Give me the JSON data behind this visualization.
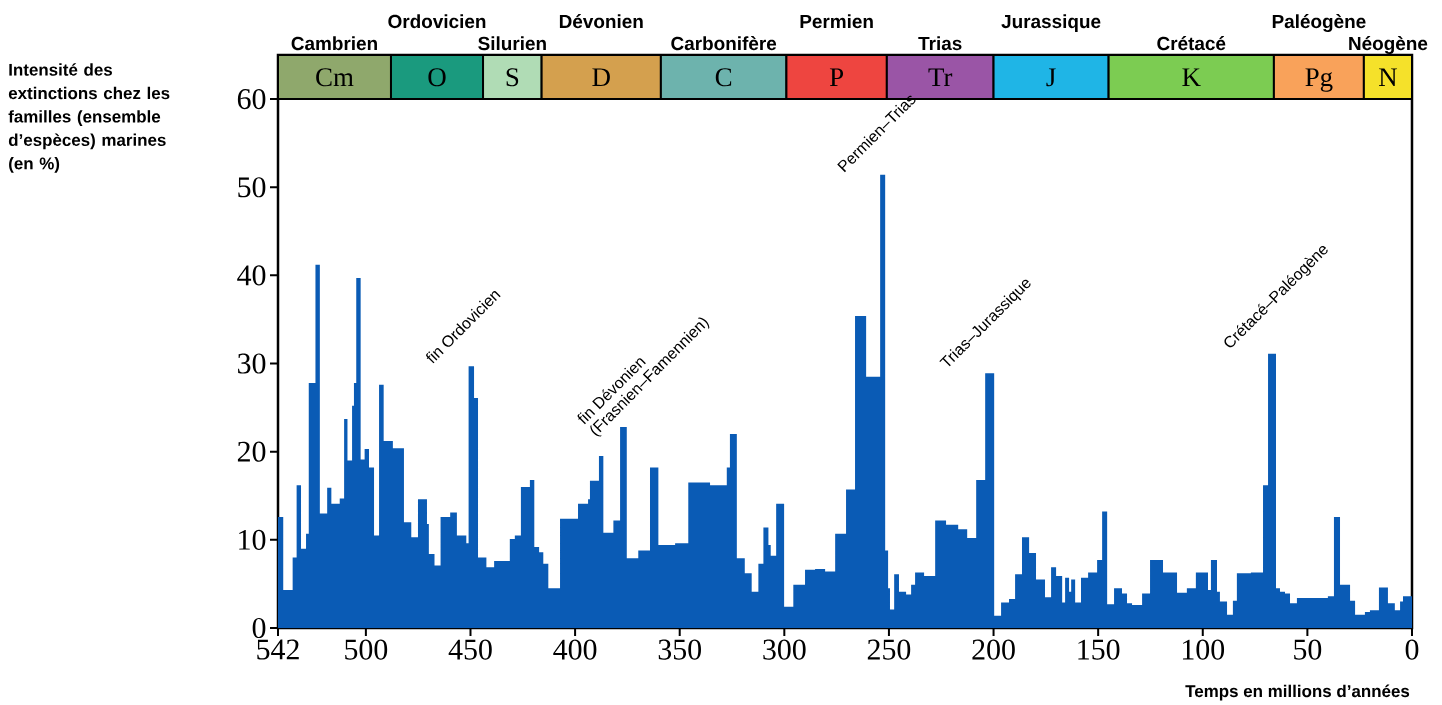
{
  "chart_data": {
    "type": "area",
    "xlabel": "Temps en millions d’années",
    "ylabel": "Intensité des extinctions chez les familles (ensemble d’espèces) marines (en %)",
    "x": [
      542,
      539.5,
      539.5,
      535,
      535,
      533.1,
      533.1,
      531,
      531,
      528.6,
      528.6,
      527.3,
      527.3,
      524.1,
      524.1,
      522,
      522,
      518.5,
      518.5,
      516.5,
      516.5,
      512.5,
      512.5,
      510.4,
      510.4,
      508.8,
      508.8,
      506.6,
      506.6,
      505.7,
      505.7,
      504.6,
      504.6,
      502.5,
      502.5,
      500.6,
      500.6,
      498.5,
      498.5,
      496.1,
      496.1,
      493.7,
      493.7,
      491.5,
      491.5,
      487.1,
      487.1,
      481.8,
      481.8,
      478.3,
      478.3,
      475.1,
      475.1,
      470.8,
      470.8,
      469.9,
      469.9,
      467.2,
      467.2,
      464.3,
      464.3,
      459.7,
      459.7,
      456.5,
      456.5,
      452,
      452,
      450.9,
      450.9,
      448.3,
      448.3,
      446.4,
      446.4,
      442.4,
      442.4,
      438.7,
      438.7,
      431.2,
      431.2,
      428.8,
      428.8,
      425.9,
      425.9,
      421.6,
      421.6,
      419.5,
      419.5,
      417.2,
      417.2,
      415.2,
      415.2,
      412.8,
      412.8,
      407.2,
      407.2,
      398.6,
      398.6,
      393.8,
      393.8,
      392.9,
      392.9,
      388.6,
      388.6,
      386.5,
      386.5,
      381.7,
      381.7,
      378.5,
      378.5,
      375.3,
      375.3,
      369.8,
      369.8,
      364.2,
      364.2,
      360.2,
      360.2,
      352.2,
      352.2,
      345.9,
      345.9,
      335.5,
      335.5,
      327.5,
      327.5,
      326,
      326,
      322.7,
      322.7,
      318.9,
      318.9,
      315.6,
      315.6,
      312.4,
      312.4,
      310,
      310,
      307.6,
      307.6,
      306.5,
      306.5,
      303.9,
      303.9,
      300.1,
      300.1,
      295.7,
      295.7,
      290.1,
      290.1,
      285.3,
      285.3,
      280.5,
      280.5,
      275.7,
      275.7,
      270.5,
      270.5,
      266.2,
      266.2,
      260.9,
      260.9,
      254.2,
      254.2,
      251.8,
      251.8,
      250.4,
      250.4,
      249.5,
      249.5,
      247.5,
      247.5,
      245.2,
      245.2,
      241.8,
      241.8,
      239.4,
      239.4,
      237.5,
      237.5,
      233.2,
      233.2,
      227.9,
      227.9,
      222.7,
      222.7,
      216.9,
      216.9,
      212.6,
      212.6,
      208.3,
      208.3,
      204,
      204,
      199.7,
      199.7,
      196.4,
      196.4,
      192.6,
      192.6,
      189.7,
      189.7,
      186.4,
      186.4,
      183,
      183,
      179.7,
      179.7,
      175.4,
      175.4,
      172.5,
      172.5,
      170.1,
      170.1,
      167.2,
      167.2,
      165.8,
      165.8,
      163.9,
      163.9,
      162.9,
      162.9,
      161,
      161,
      158.2,
      158.2,
      154.8,
      154.8,
      150.5,
      150.5,
      148.1,
      148.1,
      145.7,
      145.7,
      142.4,
      142.4,
      138.6,
      138.6,
      136.2,
      136.2,
      133.8,
      133.8,
      129,
      129,
      125.2,
      125.2,
      119,
      119,
      112.3,
      112.3,
      107.6,
      107.6,
      103.3,
      103.3,
      97.5,
      97.5,
      96.1,
      96.1,
      93.2,
      93.2,
      91.8,
      91.8,
      88.4,
      88.4,
      85.6,
      85.6,
      83.7,
      83.7,
      77,
      77,
      71.2,
      71.2,
      68.8,
      68.8,
      65,
      65,
      63.1,
      63.1,
      60.7,
      60.7,
      58.3,
      58.3,
      55,
      55,
      40.2,
      40.2,
      37.3,
      37.3,
      34.4,
      34.4,
      29.6,
      29.6,
      27.2,
      27.2,
      22.5,
      22.5,
      20.1,
      20.1,
      15.8,
      15.8,
      11.5,
      11.5,
      8.2,
      8.2,
      5.7,
      5.7,
      4.3,
      4.3,
      0
    ],
    "values": [
      12.6,
      12.6,
      4.3,
      4.3,
      8.0,
      8.0,
      16.2,
      16.2,
      9.0,
      9.0,
      10.7,
      10.7,
      27.8,
      27.8,
      41.2,
      41.2,
      13.0,
      13.0,
      15.9,
      15.9,
      14.1,
      14.1,
      14.7,
      14.7,
      23.7,
      23.7,
      19.0,
      19.0,
      25.2,
      25.2,
      27.8,
      27.8,
      39.7,
      39.7,
      19.1,
      19.1,
      20.3,
      20.3,
      18.2,
      18.2,
      10.5,
      10.5,
      27.6,
      27.6,
      21.2,
      21.2,
      20.4,
      20.4,
      12.0,
      12.0,
      10.3,
      10.3,
      14.6,
      14.6,
      11.8,
      11.8,
      8.4,
      8.4,
      7.1,
      7.1,
      12.6,
      12.6,
      13.1,
      13.1,
      10.5,
      10.5,
      9.6,
      9.6,
      29.7,
      29.7,
      26.1,
      26.1,
      8.0,
      8.0,
      6.9,
      6.9,
      7.6,
      7.6,
      10.1,
      10.1,
      10.5,
      10.5,
      16.0,
      16.0,
      16.8,
      16.8,
      9.2,
      9.2,
      8.6,
      8.6,
      7.3,
      7.3,
      4.5,
      4.5,
      12.4,
      12.4,
      14.1,
      14.1,
      14.6,
      14.6,
      16.7,
      16.7,
      19.5,
      19.5,
      10.8,
      10.8,
      12.2,
      12.2,
      22.8,
      22.8,
      7.9,
      7.9,
      8.8,
      8.8,
      18.2,
      18.2,
      9.4,
      9.4,
      9.6,
      9.6,
      16.5,
      16.5,
      16.2,
      16.2,
      18.2,
      18.2,
      22.0,
      22.0,
      7.9,
      7.9,
      6.2,
      6.2,
      4.1,
      4.1,
      7.3,
      7.3,
      11.4,
      11.4,
      9.4,
      9.4,
      8.2,
      8.2,
      14.1,
      14.1,
      2.4,
      2.4,
      4.9,
      4.9,
      6.6,
      6.6,
      6.7,
      6.7,
      6.4,
      6.4,
      10.7,
      10.7,
      15.7,
      15.7,
      35.4,
      35.4,
      28.5,
      28.5,
      51.4,
      51.4,
      8.8,
      8.8,
      4.5,
      4.5,
      2.1,
      2.1,
      6.1,
      6.1,
      4.1,
      4.1,
      3.8,
      3.8,
      4.9,
      4.9,
      6.3,
      6.3,
      5.9,
      5.9,
      12.2,
      12.2,
      11.7,
      11.7,
      11.2,
      11.2,
      10.2,
      10.2,
      16.8,
      16.8,
      28.9,
      28.9,
      1.4,
      1.4,
      2.9,
      2.9,
      3.3,
      3.3,
      6.1,
      6.1,
      10.3,
      10.3,
      8.5,
      8.5,
      5.5,
      5.5,
      3.5,
      3.5,
      6.9,
      6.9,
      5.9,
      5.9,
      2.9,
      2.9,
      5.7,
      5.7,
      4.1,
      4.1,
      5.5,
      5.5,
      2.9,
      2.9,
      5.7,
      5.7,
      6.3,
      6.3,
      7.7,
      7.7,
      13.2,
      13.2,
      2.7,
      2.7,
      4.5,
      4.5,
      3.9,
      3.9,
      2.8,
      2.8,
      2.6,
      2.6,
      3.9,
      3.9,
      7.7,
      7.7,
      6.3,
      6.3,
      4.0,
      4.0,
      4.5,
      4.5,
      6.3,
      6.3,
      4.3,
      4.3,
      7.7,
      7.7,
      4.1,
      4.1,
      3.0,
      3.0,
      1.5,
      1.5,
      3.1,
      3.1,
      6.2,
      6.2,
      6.3,
      6.3,
      16.2,
      16.2,
      31.1,
      31.1,
      4.5,
      4.5,
      4.1,
      4.1,
      3.9,
      3.9,
      2.8,
      2.8,
      3.4,
      3.4,
      3.6,
      3.6,
      12.6,
      12.6,
      4.9,
      4.9,
      3.1,
      3.1,
      1.5,
      1.5,
      1.8,
      1.8,
      2.0,
      2.0,
      4.6,
      4.6,
      2.8,
      2.8,
      2.0,
      2.0,
      3.0,
      3.0,
      3.6,
      3.6
    ],
    "color": "#0a5bb5",
    "xlim": [
      542,
      0
    ],
    "ylim": [
      0,
      65
    ],
    "xticks": [
      542,
      500,
      450,
      400,
      350,
      300,
      250,
      200,
      150,
      100,
      50,
      0
    ],
    "yticks": [
      0,
      10,
      20,
      30,
      40,
      50,
      60
    ],
    "bands": [
      {
        "axis": "x",
        "from": 542,
        "to": 488,
        "label": "Cm",
        "color": "#8fa86c"
      },
      {
        "axis": "x",
        "from": 488,
        "to": 444,
        "label": "O",
        "color": "#1a9a7e"
      },
      {
        "axis": "x",
        "from": 444,
        "to": 416,
        "label": "S",
        "color": "#b0dcb5"
      },
      {
        "axis": "x",
        "from": 416,
        "to": 359,
        "label": "D",
        "color": "#d4a04e"
      },
      {
        "axis": "x",
        "from": 359,
        "to": 299,
        "label": "C",
        "color": "#6db3ad"
      },
      {
        "axis": "x",
        "from": 299,
        "to": 251,
        "label": "P",
        "color": "#ee4540"
      },
      {
        "axis": "x",
        "from": 251,
        "to": 200,
        "label": "Tr",
        "color": "#9a55a6"
      },
      {
        "axis": "x",
        "from": 200,
        "to": 145,
        "label": "J",
        "color": "#1fb5e6"
      },
      {
        "axis": "x",
        "from": 145,
        "to": 66,
        "label": "K",
        "color": "#7ccc52"
      },
      {
        "axis": "x",
        "from": 66,
        "to": 23,
        "label": "Pg",
        "color": "#f9a25a"
      },
      {
        "axis": "x",
        "from": 23,
        "to": 0,
        "label": "N",
        "color": "#f5e12a"
      }
    ],
    "annotations": [
      "Cambrien",
      "Ordovicien",
      "Silurien",
      "Dévonien",
      "Carbonifère",
      "Permien",
      "Trias",
      "Jurassique",
      "Crétacé",
      "Paléogène",
      "Néogène",
      {
        "text": "fin Ordovicien",
        "x": 450.9,
        "y": 29.7
      },
      {
        "text": "fin Dévonien",
        "x": 378.5,
        "y": 22.8
      },
      {
        "text": "(Frasnien–Famennien)",
        "x": 378.5,
        "y": 22.8
      },
      {
        "text": "Permien–Trias",
        "x": 254.2,
        "y": 51.4
      },
      {
        "text": "Trias–Jurassique",
        "x": 204,
        "y": 28.9
      },
      {
        "text": "Crétacé–Paléogène",
        "x": 68.8,
        "y": 31.1
      }
    ]
  }
}
